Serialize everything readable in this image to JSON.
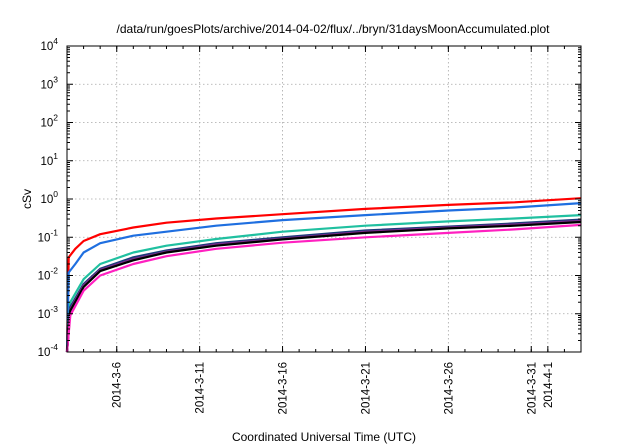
{
  "chart_data": {
    "type": "line",
    "title": "/data/run/goesPlots/archive/2014-04-02/flux/../bryn/31daysMoonAccumulated.plot",
    "xlabel": "Coordinated Universal Time (UTC)",
    "ylabel": "cSv",
    "y_scale": "log",
    "ylim": [
      0.0001,
      10000
    ],
    "xlim": [
      "2014-03-03",
      "2014-04-03"
    ],
    "y_ticks": [
      {
        "value": 0.0001,
        "base": "10",
        "exp": "-4"
      },
      {
        "value": 0.001,
        "base": "10",
        "exp": "-3"
      },
      {
        "value": 0.01,
        "base": "10",
        "exp": "-2"
      },
      {
        "value": 0.1,
        "base": "10",
        "exp": "-1"
      },
      {
        "value": 1,
        "base": "10",
        "exp": "0"
      },
      {
        "value": 10,
        "base": "10",
        "exp": "1"
      },
      {
        "value": 100,
        "base": "10",
        "exp": "2"
      },
      {
        "value": 1000,
        "base": "10",
        "exp": "3"
      },
      {
        "value": 10000,
        "base": "10",
        "exp": "4"
      }
    ],
    "x_ticks": [
      {
        "date": "2014-03-06",
        "label": "2014-3-6"
      },
      {
        "date": "2014-03-11",
        "label": "2014-3-11"
      },
      {
        "date": "2014-03-16",
        "label": "2014-3-16"
      },
      {
        "date": "2014-03-21",
        "label": "2014-3-21"
      },
      {
        "date": "2014-03-26",
        "label": "2014-3-26"
      },
      {
        "date": "2014-03-31",
        "label": "2014-3-31"
      },
      {
        "date": "2014-04-01",
        "label": "2014-4-1"
      }
    ],
    "grid": true,
    "legend": "none",
    "series": [
      {
        "color": "#ff0000",
        "points": [
          [
            "2014-03-03",
            0.0001
          ],
          [
            "2014-03-03T02:24",
            0.03
          ],
          [
            "2014-03-03T12:00",
            0.05
          ],
          [
            "2014-03-04",
            0.08
          ],
          [
            "2014-03-05",
            0.12
          ],
          [
            "2014-03-07",
            0.18
          ],
          [
            "2014-03-09",
            0.24
          ],
          [
            "2014-03-12",
            0.31
          ],
          [
            "2014-03-16",
            0.4
          ],
          [
            "2014-03-21",
            0.55
          ],
          [
            "2014-03-26",
            0.7
          ],
          [
            "2014-03-30",
            0.82
          ],
          [
            "2014-04-03",
            1.05
          ]
        ]
      },
      {
        "color": "#1f6fe0",
        "points": [
          [
            "2014-03-03",
            0.0001
          ],
          [
            "2014-03-03T02:24",
            0.012
          ],
          [
            "2014-03-03T12:00",
            0.02
          ],
          [
            "2014-03-04",
            0.04
          ],
          [
            "2014-03-05",
            0.07
          ],
          [
            "2014-03-07",
            0.11
          ],
          [
            "2014-03-09",
            0.14
          ],
          [
            "2014-03-12",
            0.2
          ],
          [
            "2014-03-16",
            0.28
          ],
          [
            "2014-03-21",
            0.38
          ],
          [
            "2014-03-26",
            0.5
          ],
          [
            "2014-03-30",
            0.6
          ],
          [
            "2014-04-03",
            0.78
          ]
        ]
      },
      {
        "color": "#20c0a0",
        "points": [
          [
            "2014-03-03",
            0.0001
          ],
          [
            "2014-03-03T04:48",
            0.002
          ],
          [
            "2014-03-04",
            0.008
          ],
          [
            "2014-03-05",
            0.02
          ],
          [
            "2014-03-07",
            0.04
          ],
          [
            "2014-03-09",
            0.06
          ],
          [
            "2014-03-12",
            0.09
          ],
          [
            "2014-03-16",
            0.14
          ],
          [
            "2014-03-21",
            0.2
          ],
          [
            "2014-03-26",
            0.26
          ],
          [
            "2014-03-30",
            0.31
          ],
          [
            "2014-04-03",
            0.38
          ]
        ]
      },
      {
        "color": "#1a3c7a",
        "points": [
          [
            "2014-03-03",
            0.0001
          ],
          [
            "2014-03-03T04:48",
            0.0015
          ],
          [
            "2014-03-04",
            0.006
          ],
          [
            "2014-03-05",
            0.015
          ],
          [
            "2014-03-07",
            0.03
          ],
          [
            "2014-03-09",
            0.045
          ],
          [
            "2014-03-12",
            0.07
          ],
          [
            "2014-03-16",
            0.1
          ],
          [
            "2014-03-21",
            0.15
          ],
          [
            "2014-03-26",
            0.19
          ],
          [
            "2014-03-30",
            0.23
          ],
          [
            "2014-04-03",
            0.29
          ]
        ]
      },
      {
        "color": "#7a2a8a",
        "points": [
          [
            "2014-03-03",
            0.0001
          ],
          [
            "2014-03-03T04:48",
            0.0013
          ],
          [
            "2014-03-04",
            0.0055
          ],
          [
            "2014-03-05",
            0.014
          ],
          [
            "2014-03-07",
            0.027
          ],
          [
            "2014-03-09",
            0.042
          ],
          [
            "2014-03-12",
            0.065
          ],
          [
            "2014-03-16",
            0.092
          ],
          [
            "2014-03-21",
            0.14
          ],
          [
            "2014-03-26",
            0.18
          ],
          [
            "2014-03-30",
            0.215
          ],
          [
            "2014-04-03",
            0.27
          ]
        ]
      },
      {
        "color": "#000000",
        "points": [
          [
            "2014-03-03",
            0.0001
          ],
          [
            "2014-03-03T04:48",
            0.0012
          ],
          [
            "2014-03-04",
            0.005
          ],
          [
            "2014-03-05",
            0.013
          ],
          [
            "2014-03-07",
            0.025
          ],
          [
            "2014-03-09",
            0.04
          ],
          [
            "2014-03-12",
            0.06
          ],
          [
            "2014-03-16",
            0.088
          ],
          [
            "2014-03-21",
            0.13
          ],
          [
            "2014-03-26",
            0.17
          ],
          [
            "2014-03-30",
            0.2
          ],
          [
            "2014-04-03",
            0.25
          ]
        ]
      },
      {
        "color": "#ff20c0",
        "points": [
          [
            "2014-03-03",
            0.0001
          ],
          [
            "2014-03-03T04:48",
            0.0009
          ],
          [
            "2014-03-04",
            0.004
          ],
          [
            "2014-03-05",
            0.01
          ],
          [
            "2014-03-07",
            0.02
          ],
          [
            "2014-03-09",
            0.032
          ],
          [
            "2014-03-12",
            0.05
          ],
          [
            "2014-03-16",
            0.072
          ],
          [
            "2014-03-21",
            0.1
          ],
          [
            "2014-03-26",
            0.13
          ],
          [
            "2014-03-30",
            0.16
          ],
          [
            "2014-04-03",
            0.21
          ]
        ]
      }
    ]
  }
}
